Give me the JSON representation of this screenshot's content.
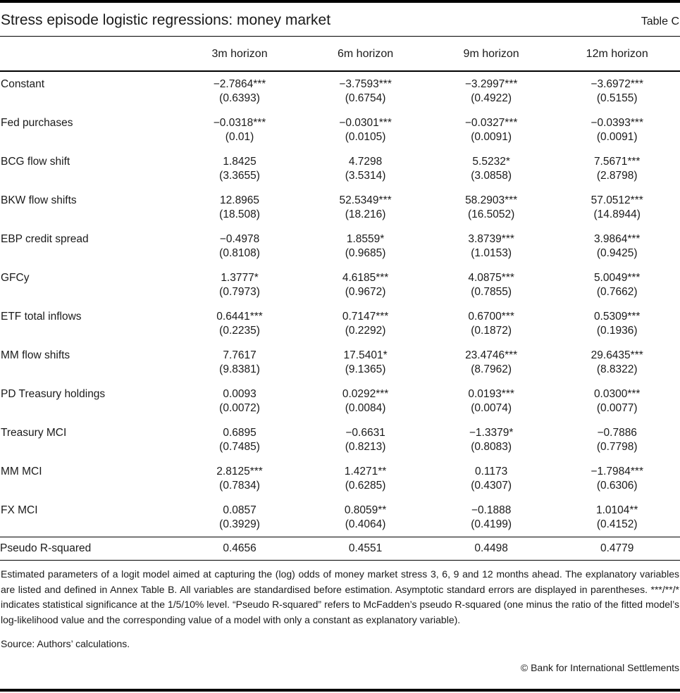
{
  "header": {
    "title": "Stress episode logistic regressions: money market",
    "table_label": "Table C"
  },
  "table": {
    "column_headers": [
      "3m horizon",
      "6m horizon",
      "9m horizon",
      "12m horizon"
    ],
    "rows": [
      {
        "label": "Constant",
        "coef": [
          "−2.7864***",
          "−3.7593***",
          "−3.2997***",
          "−3.6972***"
        ],
        "se": [
          "(0.6393)",
          "(0.6754)",
          "(0.4922)",
          "(0.5155)"
        ]
      },
      {
        "label": "Fed purchases",
        "coef": [
          "−0.0318***",
          "−0.0301***",
          "−0.0327***",
          "−0.0393***"
        ],
        "se": [
          "(0.01)",
          "(0.0105)",
          "(0.0091)",
          "(0.0091)"
        ]
      },
      {
        "label": "BCG flow shift",
        "coef": [
          "1.8425",
          "4.7298",
          "5.5232*",
          "7.5671***"
        ],
        "se": [
          "(3.3655)",
          "(3.5314)",
          "(3.0858)",
          "(2.8798)"
        ]
      },
      {
        "label": "BKW flow shifts",
        "coef": [
          "12.8965",
          "52.5349***",
          "58.2903***",
          "57.0512***"
        ],
        "se": [
          "(18.508)",
          "(18.216)",
          "(16.5052)",
          "(14.8944)"
        ]
      },
      {
        "label": "EBP credit spread",
        "coef": [
          "−0.4978",
          "1.8559*",
          "3.8739***",
          "3.9864***"
        ],
        "se": [
          "(0.8108)",
          "(0.9685)",
          "(1.0153)",
          "(0.9425)"
        ]
      },
      {
        "label": "GFCy",
        "coef": [
          "1.3777*",
          "4.6185***",
          "4.0875***",
          "5.0049***"
        ],
        "se": [
          "(0.7973)",
          "(0.9672)",
          "(0.7855)",
          "(0.7662)"
        ]
      },
      {
        "label": "ETF total inflows",
        "coef": [
          "0.6441***",
          "0.7147***",
          "0.6700***",
          "0.5309***"
        ],
        "se": [
          "(0.2235)",
          "(0.2292)",
          "(0.1872)",
          "(0.1936)"
        ]
      },
      {
        "label": "MM flow shifts",
        "coef": [
          "7.7617",
          "17.5401*",
          "23.4746***",
          "29.6435***"
        ],
        "se": [
          "(9.8381)",
          "(9.1365)",
          "(8.7962)",
          "(8.8322)"
        ]
      },
      {
        "label": "PD Treasury holdings",
        "coef": [
          "0.0093",
          "0.0292***",
          "0.0193***",
          "0.0300***"
        ],
        "se": [
          "(0.0072)",
          "(0.0084)",
          "(0.0074)",
          "(0.0077)"
        ]
      },
      {
        "label": "Treasury MCI",
        "coef": [
          "0.6895",
          "−0.6631",
          "−1.3379*",
          "−0.7886"
        ],
        "se": [
          "(0.7485)",
          "(0.8213)",
          "(0.8083)",
          "(0.7798)"
        ]
      },
      {
        "label": "MM MCI",
        "coef": [
          "2.8125***",
          "1.4271**",
          "0.1173",
          "−1.7984***"
        ],
        "se": [
          "(0.7834)",
          "(0.6285)",
          "(0.4307)",
          "(0.6306)"
        ]
      },
      {
        "label": "FX MCI",
        "coef": [
          "0.0857",
          "0.8059**",
          "−0.1888",
          "1.0104**"
        ],
        "se": [
          "(0.3929)",
          "(0.4064)",
          "(0.4199)",
          "(0.4152)"
        ]
      }
    ],
    "summary_row": {
      "label": "Pseudo R-squared",
      "values": [
        "0.4656",
        "0.4551",
        "0.4498",
        "0.4779"
      ]
    }
  },
  "notes": {
    "body": "Estimated parameters of a logit model aimed at capturing the (log) odds of money market stress 3, 6, 9 and 12 months ahead. The explanatory variables are listed and defined in Annex Table B. All variables are standardised before estimation. Asymptotic standard errors are displayed in parentheses. ***/**/* indicates statistical significance at the 1/5/10% level. “Pseudo R-squared” refers to McFadden’s pseudo R-squared (one minus the ratio of the fitted model’s log-likelihood value and the corresponding value of a model with only a constant as explanatory variable).",
    "source": "Source: Authors’ calculations.",
    "copyright": "© Bank for International Settlements"
  },
  "colors": {
    "text": "#1a1a1a",
    "rule": "#000000"
  }
}
